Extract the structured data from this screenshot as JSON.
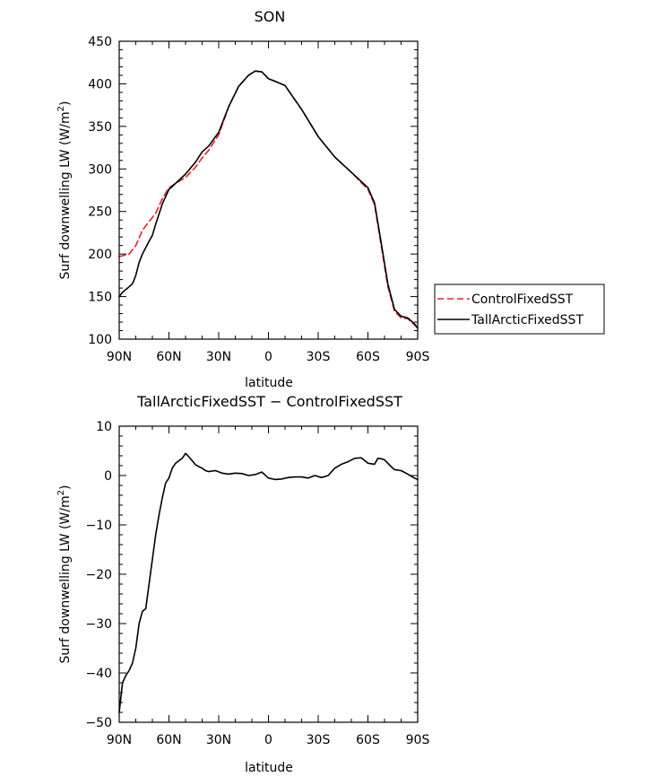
{
  "chart_data": [
    {
      "type": "line",
      "title": "SON",
      "xlabel": "latitude",
      "ylabel": "Surf downwelling LW (W/m²)",
      "ylabel_main": "Surf downwelling LW (W/m",
      "ylabel_sup": "2",
      "ylabel_end": ")",
      "xlim": [
        90,
        -90
      ],
      "ylim": [
        100,
        450
      ],
      "x_ticks": [
        {
          "value": 90,
          "label": "90N"
        },
        {
          "value": 60,
          "label": "60N"
        },
        {
          "value": 30,
          "label": "30N"
        },
        {
          "value": 0,
          "label": "0"
        },
        {
          "value": -30,
          "label": "30S"
        },
        {
          "value": -60,
          "label": "60S"
        },
        {
          "value": -90,
          "label": "90S"
        }
      ],
      "y_ticks": [
        100,
        150,
        200,
        250,
        300,
        350,
        400,
        450
      ],
      "legend_position": "right",
      "series": [
        {
          "name": "ControlFixedSST",
          "color": "#e8202a",
          "dash": true,
          "x": [
            90,
            84,
            80,
            76,
            72,
            68,
            64,
            60,
            56,
            50,
            44,
            40,
            36,
            30,
            24,
            18,
            12,
            8,
            4,
            0,
            -4,
            -10,
            -20,
            -30,
            -40,
            -50,
            -60,
            -64,
            -68,
            -72,
            -76,
            -80,
            -84,
            -88,
            -90
          ],
          "y": [
            197,
            200,
            210,
            228,
            238,
            248,
            265,
            278,
            283,
            290,
            302,
            313,
            322,
            340,
            373,
            397,
            410,
            415,
            414,
            406,
            403,
            398,
            370,
            338,
            314,
            296,
            276,
            258,
            210,
            162,
            133,
            125,
            124,
            117,
            113
          ]
        },
        {
          "name": "TallArcticFixedSST",
          "color": "#000000",
          "dash": false,
          "x": [
            90,
            88,
            85,
            82,
            80,
            78,
            76,
            72,
            70,
            68,
            64,
            60,
            56,
            50,
            44,
            40,
            36,
            30,
            24,
            18,
            12,
            8,
            4,
            0,
            -4,
            -10,
            -20,
            -30,
            -40,
            -50,
            -60,
            -64,
            -68,
            -72,
            -76,
            -80,
            -84,
            -88,
            -90
          ],
          "y": [
            150,
            155,
            160,
            165,
            175,
            190,
            200,
            215,
            222,
            235,
            259,
            276,
            283,
            294,
            308,
            320,
            327,
            343,
            373,
            397,
            410,
            415,
            414,
            406,
            403,
            398,
            370,
            338,
            314,
            296,
            278,
            260,
            213,
            165,
            135,
            127,
            125,
            118,
            113
          ]
        }
      ]
    },
    {
      "type": "line",
      "title": "TallArcticFixedSST − ControlFixedSST",
      "xlabel": "latitude",
      "ylabel": "Surf downwelling LW (W/m²)",
      "ylabel_main": "Surf downwelling LW (W/m",
      "ylabel_sup": "2",
      "ylabel_end": ")",
      "xlim": [
        90,
        -90
      ],
      "ylim": [
        -50,
        10
      ],
      "x_ticks": [
        {
          "value": 90,
          "label": "90N"
        },
        {
          "value": 60,
          "label": "60N"
        },
        {
          "value": 30,
          "label": "30N"
        },
        {
          "value": 0,
          "label": "0"
        },
        {
          "value": -30,
          "label": "30S"
        },
        {
          "value": -60,
          "label": "60S"
        },
        {
          "value": -90,
          "label": "90S"
        }
      ],
      "y_ticks": [
        -50,
        -40,
        -30,
        -20,
        -10,
        0,
        10
      ],
      "series": [
        {
          "color": "#000000",
          "dash": false,
          "x": [
            90,
            89,
            88,
            86,
            84,
            82,
            80,
            78,
            76,
            74,
            72,
            70,
            68,
            66,
            64,
            62,
            60,
            58,
            56,
            54,
            52,
            50,
            48,
            46,
            44,
            42,
            40,
            38,
            36,
            32,
            28,
            24,
            20,
            16,
            12,
            8,
            4,
            0,
            -4,
            -8,
            -12,
            -16,
            -20,
            -24,
            -28,
            -32,
            -36,
            -40,
            -44,
            -48,
            -52,
            -56,
            -60,
            -64,
            -66,
            -68,
            -70,
            -72,
            -74,
            -76,
            -80,
            -84,
            -88,
            -90
          ],
          "y": [
            -48,
            -45,
            -42,
            -40.5,
            -39.5,
            -38,
            -35,
            -30,
            -27.5,
            -27,
            -22,
            -17,
            -12,
            -8,
            -4.5,
            -1.5,
            -0.5,
            1.5,
            2.5,
            3,
            3.5,
            4.5,
            3.8,
            3,
            2.2,
            1.8,
            1.5,
            1,
            0.8,
            1,
            0.5,
            0.3,
            0.5,
            0.4,
            0,
            0.2,
            0.7,
            -0.5,
            -0.8,
            -0.7,
            -0.4,
            -0.3,
            -0.3,
            -0.5,
            0,
            -0.4,
            0,
            1.5,
            2.3,
            2.8,
            3.5,
            3.6,
            2.5,
            2.3,
            3.5,
            3.4,
            3.2,
            2.5,
            1.8,
            1.2,
            1,
            0.3,
            -0.5,
            -0.8
          ]
        }
      ]
    }
  ]
}
